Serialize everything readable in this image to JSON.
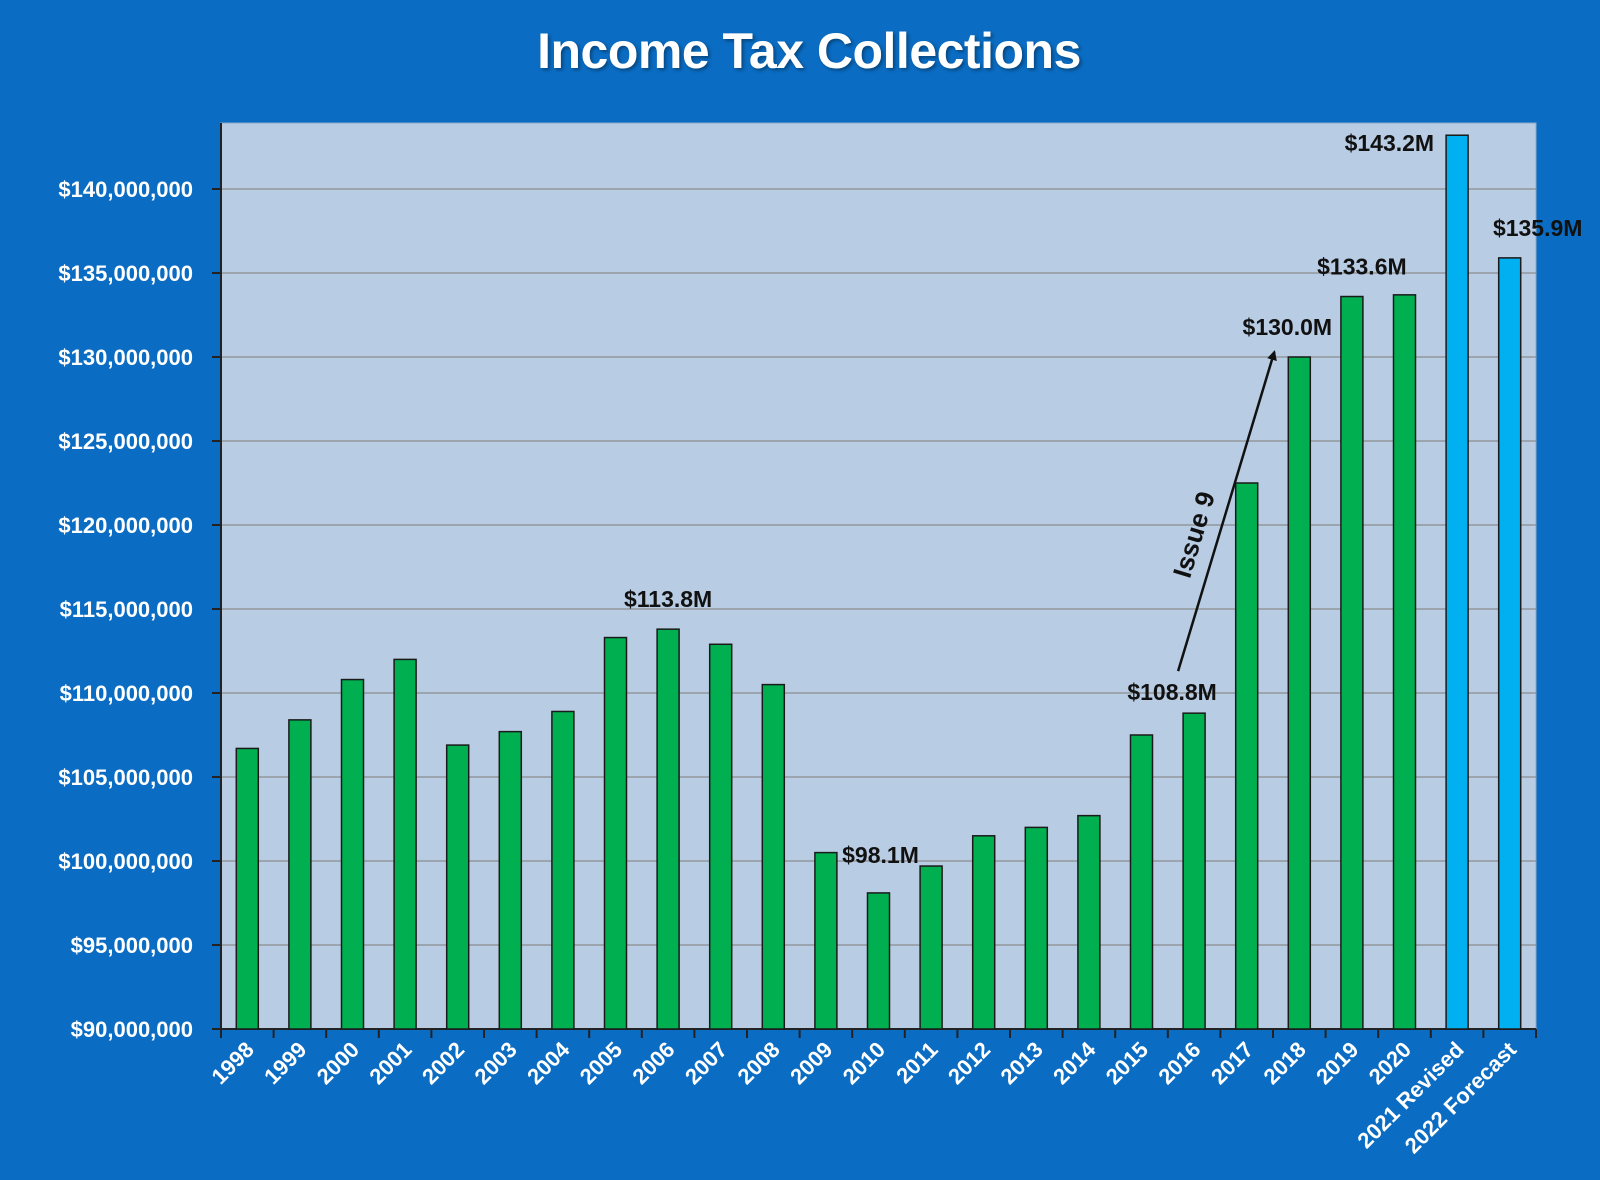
{
  "colors": {
    "background": "#0a6cc2",
    "plot_area": "#b8cce4",
    "actual_bar": "#00b050",
    "projected_bar": "#00b0f0",
    "gridline": "#8c8c8c"
  },
  "chart_data": {
    "type": "bar",
    "title": "Income Tax Collections",
    "xlabel": "",
    "ylabel": "",
    "ylim": [
      90000000,
      143200000
    ],
    "yticks": [
      90000000,
      95000000,
      100000000,
      105000000,
      110000000,
      115000000,
      120000000,
      125000000,
      130000000,
      135000000,
      140000000
    ],
    "ytick_labels": [
      "$90,000,000",
      "$95,000,000",
      "$100,000,000",
      "$105,000,000",
      "$110,000,000",
      "$115,000,000",
      "$120,000,000",
      "$125,000,000",
      "$130,000,000",
      "$135,000,000",
      "$140,000,000"
    ],
    "grid": true,
    "legend": "none",
    "categories": [
      "1998",
      "1999",
      "2000",
      "2001",
      "2002",
      "2003",
      "2004",
      "2005",
      "2006",
      "2007",
      "2008",
      "2009",
      "2010",
      "2011",
      "2012",
      "2013",
      "2014",
      "2015",
      "2016",
      "2017",
      "2018",
      "2019",
      "2020",
      "2021 Revised",
      "2022 Forecast"
    ],
    "values": [
      106700000,
      108400000,
      110800000,
      112000000,
      106900000,
      107700000,
      108900000,
      113300000,
      113800000,
      112900000,
      110500000,
      100500000,
      98100000,
      99700000,
      101500000,
      102000000,
      102700000,
      107500000,
      108800000,
      122500000,
      130000000,
      133600000,
      133700000,
      143200000,
      135900000
    ],
    "bar_kind": [
      "actual",
      "actual",
      "actual",
      "actual",
      "actual",
      "actual",
      "actual",
      "actual",
      "actual",
      "actual",
      "actual",
      "actual",
      "actual",
      "actual",
      "actual",
      "actual",
      "actual",
      "actual",
      "actual",
      "actual",
      "actual",
      "actual",
      "actual",
      "projected",
      "projected"
    ],
    "data_labels": [
      {
        "category": "2006",
        "text": "$113.8M"
      },
      {
        "category": "2010",
        "text": "$98.1M"
      },
      {
        "category": "2016",
        "text": "$108.8M"
      },
      {
        "category": "2018",
        "text": "$130.0M"
      },
      {
        "category": "2019",
        "text": "$133.6M"
      },
      {
        "category": "2021 Revised",
        "text": "$143.2M"
      },
      {
        "category": "2022 Forecast",
        "text": "$135.9M"
      }
    ],
    "annotations": [
      {
        "text": "Issue 9",
        "arrow_from_category": "2016",
        "arrow_to_category": "2018"
      }
    ]
  }
}
